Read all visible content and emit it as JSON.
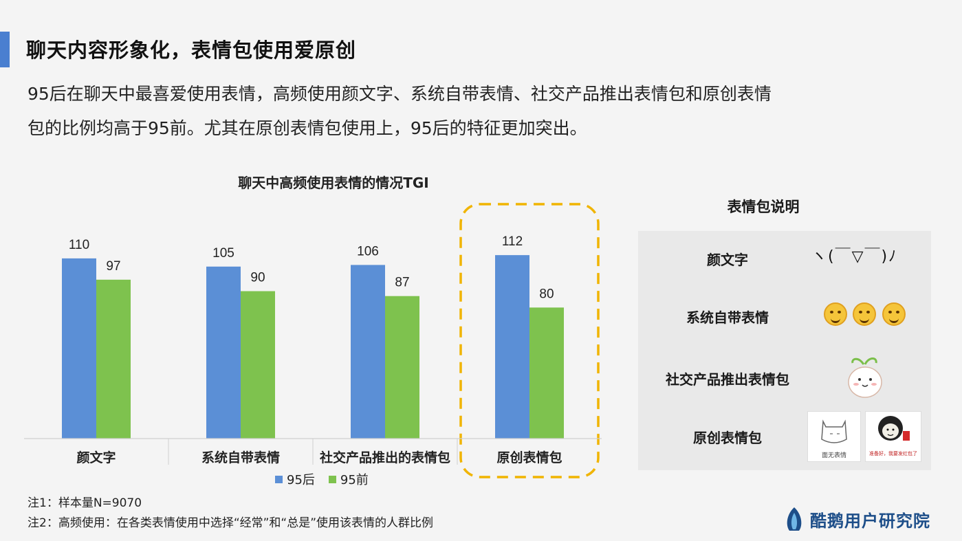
{
  "header": {
    "title": "聊天内容形象化，表情包使用爱原创",
    "subtitle_line1": "95后在聊天中最喜爱使用表情，高频使用颜文字、系统自带表情、社交产品推出表情包和原创表情",
    "subtitle_line2": "包的比例均高于95前。尤其在原创表情包使用上，95后的特征更加突出。"
  },
  "chart_data": {
    "type": "bar",
    "title": "聊天中高频使用表情的情况TGI",
    "categories": [
      "颜文字",
      "系统自带表情",
      "社交产品推出的表情包",
      "原创表情包"
    ],
    "series": [
      {
        "name": "95后",
        "values": [
          110,
          105,
          106,
          112
        ],
        "color": "#5b8fd6"
      },
      {
        "name": "95前",
        "values": [
          97,
          90,
          87,
          80
        ],
        "color": "#7ec24e"
      }
    ],
    "ylim": [
      0,
      128
    ],
    "grid": false,
    "legend_position": "bottom",
    "highlight_category": "原创表情包",
    "highlight_color": "#f0b400"
  },
  "notes": {
    "note1": "注1：样本量N=9070",
    "note2": "注2：高频使用：在各类表情使用中选择“经常”和“总是”使用该表情的人群比例"
  },
  "panel": {
    "title": "表情包说明",
    "rows": [
      {
        "label": "颜文字"
      },
      {
        "label": "系统自带表情"
      },
      {
        "label": "社交产品推出表情包"
      },
      {
        "label": "原创表情包"
      }
    ],
    "kaomoji": "ヽ(￣▽￣)ﾉ",
    "sticker1_caption": "面无表情",
    "sticker2_caption": "准备好，我要发红包了"
  },
  "logo": {
    "text": "酷鹅用户研究院",
    "color": "#1d4e89"
  }
}
